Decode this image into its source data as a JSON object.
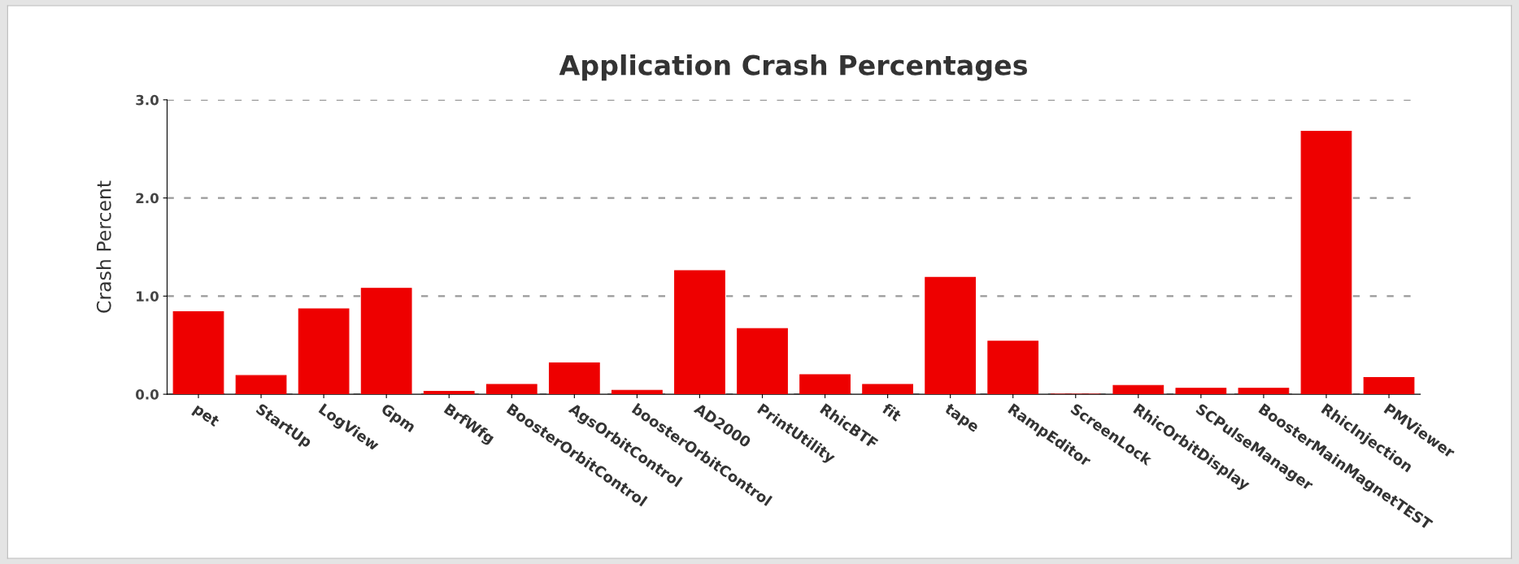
{
  "chart_data": {
    "type": "bar",
    "title": "Application Crash Percentages",
    "ylabel": "Crash Percent",
    "categories": [
      "pet",
      "StartUp",
      "LogView",
      "Gpm",
      "BrfWfg",
      "BoosterOrbitControl",
      "AgsOrbitControl",
      "boosterOrbitControl",
      "AD2000",
      "PrintUtility",
      "RhicBTF",
      "fit",
      "tape",
      "RampEditor",
      "ScreenLock",
      "RhicOrbitDisplay",
      "SCPulseManager",
      "BoosterMainMagnetTEST",
      "RhicInjection",
      "PMViewer"
    ],
    "values": [
      0.84,
      0.19,
      0.87,
      1.08,
      0.03,
      0.1,
      0.32,
      0.04,
      1.26,
      0.67,
      0.2,
      0.1,
      1.19,
      0.54,
      0.0,
      0.09,
      0.06,
      0.06,
      2.68,
      0.17
    ],
    "color": "#ee0000",
    "ylim": [
      0,
      3
    ],
    "yticks": [
      {
        "value": 0,
        "label": "0.0"
      },
      {
        "value": 1,
        "label": "1.0"
      },
      {
        "value": 2,
        "label": "2.0"
      },
      {
        "value": 3,
        "label": "3.0"
      }
    ],
    "grid": "y"
  }
}
